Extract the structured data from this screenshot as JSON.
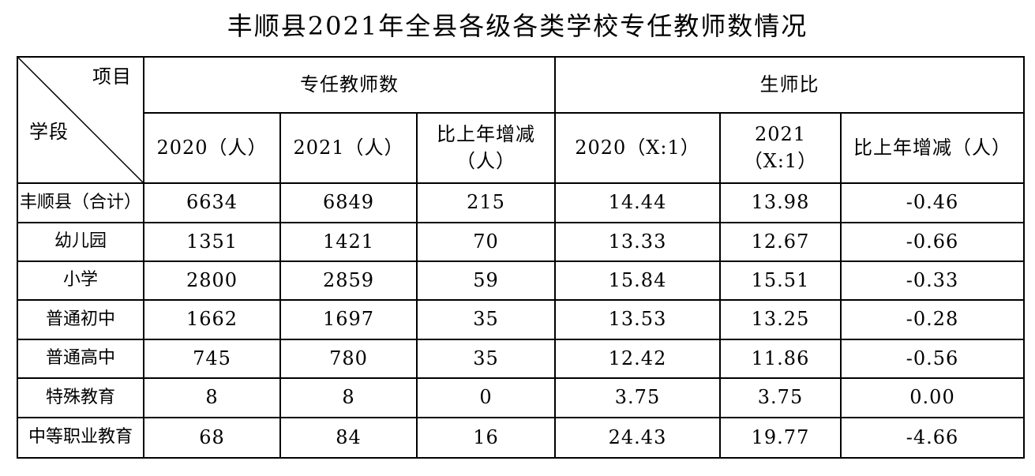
{
  "title": "丰顺县2021年全县各级各类学校专任教师数情况",
  "table": {
    "corner": {
      "top": "项目",
      "bottom": "学段"
    },
    "groups": [
      "专任教师数",
      "生师比"
    ],
    "columns": [
      "2020（人）",
      "2021（人）",
      "比上年增减（人）",
      "2020（X:1）",
      "2021（X:1）",
      "比上年增减（人）"
    ],
    "rows": [
      [
        "丰顺县（合计）",
        "6634",
        "6849",
        "215",
        "14.44",
        "13.98",
        "-0.46"
      ],
      [
        "幼儿园",
        "1351",
        "1421",
        "70",
        "13.33",
        "12.67",
        "-0.66"
      ],
      [
        "小学",
        "2800",
        "2859",
        "59",
        "15.84",
        "15.51",
        "-0.33"
      ],
      [
        "普通初中",
        "1662",
        "1697",
        "35",
        "13.53",
        "13.25",
        "-0.28"
      ],
      [
        "普通高中",
        "745",
        "780",
        "35",
        "12.42",
        "11.86",
        "-0.56"
      ],
      [
        "特殊教育",
        "8",
        "8",
        "0",
        "3.75",
        "3.75",
        "0.00"
      ],
      [
        "中等职业教育",
        "68",
        "84",
        "16",
        "24.43",
        "19.77",
        "-4.66"
      ]
    ]
  }
}
